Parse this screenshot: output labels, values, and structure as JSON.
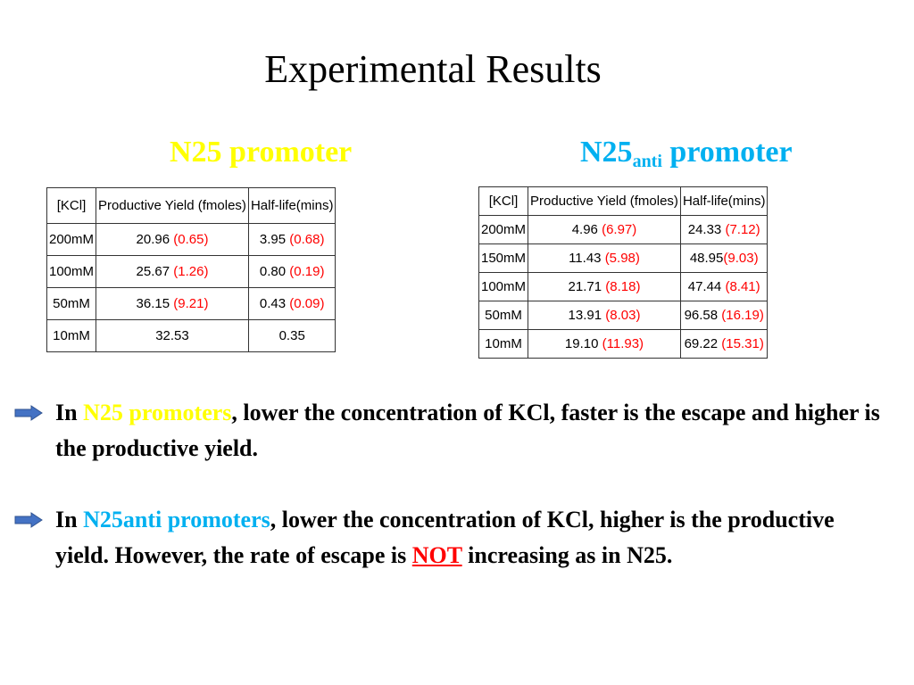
{
  "title": "Experimental Results",
  "colors": {
    "n25": "#ffff00",
    "n25anti": "#00b0f0",
    "paren_values": "#ff0000",
    "bullet_arrow": "#4472c4",
    "emphasis": "#ff0000"
  },
  "table1": {
    "heading": "N25 promoter",
    "headers": [
      "[KCl]",
      "Productive Yield (fmoles)",
      "Half-life(mins)"
    ],
    "rows": [
      {
        "kcl": "200mM",
        "yield": "20.96",
        "yield_sd": "(0.65)",
        "half": "3.95",
        "half_sd": "(0.68)"
      },
      {
        "kcl": "100mM",
        "yield": "25.67",
        "yield_sd": "(1.26)",
        "half": "0.80",
        "half_sd": "(0.19)"
      },
      {
        "kcl": "50mM",
        "yield": "36.15",
        "yield_sd": "(9.21)",
        "half": "0.43",
        "half_sd": "(0.09)"
      },
      {
        "kcl": "10mM",
        "yield": "32.53",
        "yield_sd": "",
        "half": "0.35",
        "half_sd": ""
      }
    ]
  },
  "table2": {
    "heading_main": "N25",
    "heading_sub": "anti",
    "heading_rest": "promoter",
    "headers": [
      "[KCl]",
      "Productive Yield (fmoles)",
      "Half-life(mins)"
    ],
    "rows": [
      {
        "kcl": "200mM",
        "yield": "4.96",
        "yield_sd": "(6.97)",
        "half": "24.33",
        "half_sd": "(7.12)"
      },
      {
        "kcl": "150mM",
        "yield": "11.43",
        "yield_sd": "(5.98)",
        "half": "48.95",
        "half_sd": "(9.03)"
      },
      {
        "kcl": "100mM",
        "yield": "21.71",
        "yield_sd": "(8.18)",
        "half": "47.44",
        "half_sd": "(8.41)"
      },
      {
        "kcl": "50mM",
        "yield": "13.91",
        "yield_sd": "(8.03)",
        "half": "96.58",
        "half_sd": "(16.19)"
      },
      {
        "kcl": "10mM",
        "yield": "19.10",
        "yield_sd": "(11.93)",
        "half": "69.22",
        "half_sd": "(15.31)"
      }
    ]
  },
  "bullets": [
    {
      "icon": "arrow-right-icon",
      "lead": "In ",
      "highlight": "N25 promoters",
      "text": ", lower the concentration of KCl, faster is the escape and higher is the productive yield."
    },
    {
      "icon": "arrow-right-icon",
      "lead": "In ",
      "highlight": "N25anti promoters",
      "text_before": ", lower the concentration of KCl, higher is the productive yield. However, the rate of escape is ",
      "emphasis": "NOT",
      "text_after": " increasing as in N25."
    }
  ]
}
